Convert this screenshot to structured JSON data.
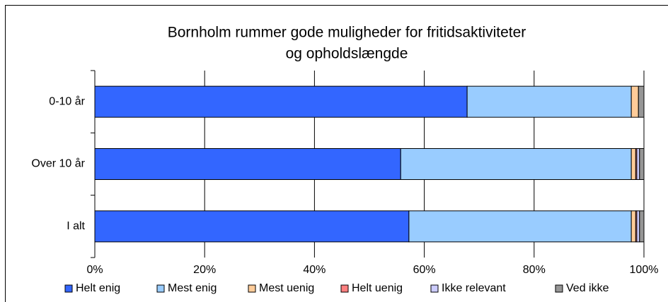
{
  "chart_data": {
    "type": "stacked-barh",
    "title": [
      "Bornholm rummer gode muligheder for fritidsaktiviteter",
      "og opholdslængde"
    ],
    "categories": [
      "0-10 år",
      "Over 10 år",
      "I alt"
    ],
    "series": [
      {
        "name": "Helt enig",
        "color": "#3366ff",
        "values": [
          67.8,
          55.7,
          57.2
        ]
      },
      {
        "name": "Mest enig",
        "color": "#99ccff",
        "values": [
          29.9,
          42.0,
          40.5
        ]
      },
      {
        "name": "Mest uenig",
        "color": "#ffcc99",
        "values": [
          1.3,
          0.8,
          0.8
        ]
      },
      {
        "name": "Helt uenig",
        "color": "#ff8080",
        "values": [
          0,
          0.2,
          0.2
        ]
      },
      {
        "name": "Ikke relevant",
        "color": "#ccccff",
        "values": [
          0,
          0.5,
          0.5
        ]
      },
      {
        "name": "Ved ikke",
        "color": "#969696",
        "values": [
          1.0,
          0.8,
          0.8
        ]
      }
    ],
    "xlim": [
      0,
      100
    ],
    "xticks": [
      {
        "value": 0,
        "label": "0%"
      },
      {
        "value": 20,
        "label": "20%"
      },
      {
        "value": 40,
        "label": "40%"
      },
      {
        "value": 60,
        "label": "60%"
      },
      {
        "value": 80,
        "label": "80%"
      },
      {
        "value": 100,
        "label": "100%"
      }
    ],
    "grid": true,
    "legend": "bottom"
  }
}
